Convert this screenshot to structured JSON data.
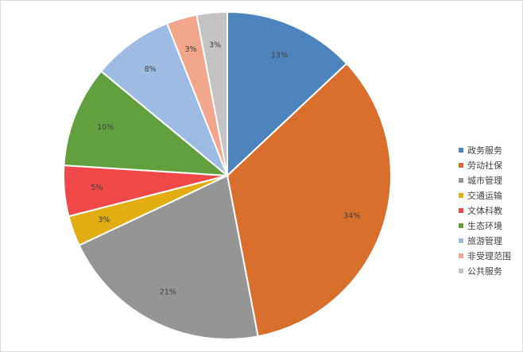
{
  "chart_data": {
    "type": "pie",
    "title": "",
    "series": [
      {
        "name": "政务服务",
        "value": 13,
        "label": "13%",
        "color": "#4e84bd"
      },
      {
        "name": "劳动社保",
        "value": 34,
        "label": "34%",
        "color": "#d96f2c"
      },
      {
        "name": "城市管理",
        "value": 21,
        "label": "21%",
        "color": "#959595"
      },
      {
        "name": "交通运输",
        "value": 3,
        "label": "3%",
        "color": "#e1ad12"
      },
      {
        "name": "文体科教",
        "value": 5,
        "label": "5%",
        "color": "#f04848"
      },
      {
        "name": "生态环境",
        "value": 10,
        "label": "10%",
        "color": "#62a03f"
      },
      {
        "name": "旅游管理",
        "value": 8,
        "label": "8%",
        "color": "#9ebbe3"
      },
      {
        "name": "非受理范围",
        "value": 3,
        "label": "3%",
        "color": "#f2a68b"
      },
      {
        "name": "公共服务",
        "value": 3,
        "label": "3%",
        "color": "#c3c3c3"
      }
    ],
    "legend_position": "right"
  }
}
